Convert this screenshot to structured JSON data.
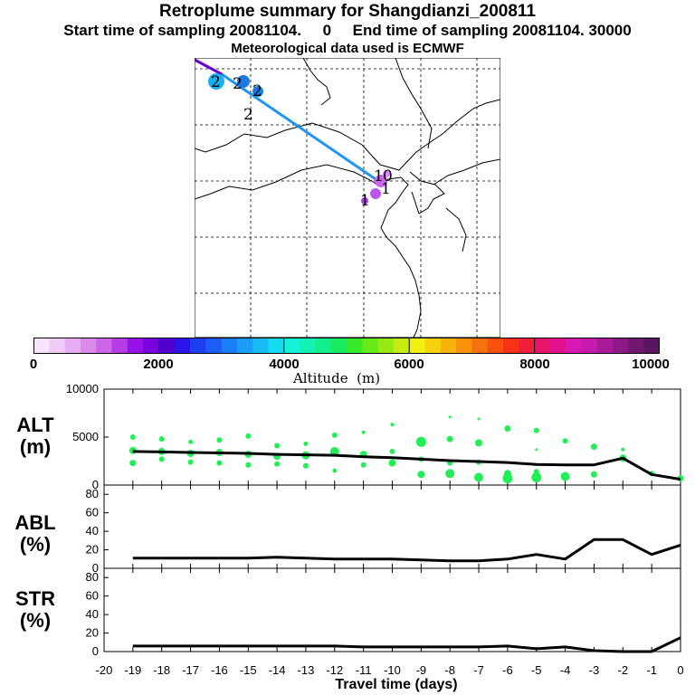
{
  "header": {
    "title": "Retroplume summary for Shangdianzi_200811",
    "subtitle": "Start time of sampling 20081104.     0     End time of sampling 20081104. 30000",
    "met_line": "Meteorological data used is ECMWF"
  },
  "map": {
    "plume_labels": [
      "2",
      "2",
      "2",
      "2",
      "1",
      "0",
      "1",
      "1"
    ]
  },
  "colorbar": {
    "title": "Altitude  (m)",
    "tick_labels": [
      "0",
      "2000",
      "4000",
      "6000",
      "8000",
      "10000"
    ],
    "range": [
      0,
      10000
    ]
  },
  "panels": {
    "alt": {
      "name": "ALT",
      "unit": "(m)"
    },
    "abl": {
      "name": "ABL",
      "unit": "(%)"
    },
    "str": {
      "name": "STR",
      "unit": "(%)"
    }
  },
  "chart_data": [
    {
      "type": "line",
      "title": "ALT",
      "xlabel": "Travel time (days)",
      "ylabel": "ALT (m)",
      "xlim": [
        -20,
        0
      ],
      "ylim": [
        0,
        10000
      ],
      "yticks": [
        "10000",
        "5000",
        "0"
      ],
      "xticks": [
        "-20",
        "-19",
        "-18",
        "-17",
        "-16",
        "-15",
        "-14",
        "-13",
        "-12",
        "-11",
        "-10",
        "-9",
        "-8",
        "-7",
        "-6",
        "-5",
        "-4",
        "-3",
        "-2",
        "-1",
        "0"
      ],
      "x": [
        -19,
        -18,
        -17,
        -16,
        -15,
        -14,
        -13,
        -12,
        -11,
        -10,
        -9,
        -8,
        -7,
        -6,
        -5,
        -4,
        -3,
        -2,
        -1,
        0
      ],
      "values": [
        3500,
        3450,
        3400,
        3350,
        3300,
        3200,
        3150,
        3100,
        2950,
        2850,
        2700,
        2550,
        2450,
        2350,
        2150,
        2100,
        2100,
        2800,
        1100,
        600
      ]
    },
    {
      "type": "line",
      "title": "ABL",
      "xlabel": "Travel time (days)",
      "ylabel": "ABL (%)",
      "xlim": [
        -20,
        0
      ],
      "ylim": [
        0,
        90
      ],
      "yticks": [
        "80",
        "60",
        "40",
        "20",
        "0"
      ],
      "x": [
        -19,
        -18,
        -17,
        -16,
        -15,
        -14,
        -13,
        -12,
        -11,
        -10,
        -9,
        -8,
        -7,
        -6,
        -5,
        -4,
        -3,
        -2,
        -1,
        0
      ],
      "values": [
        11,
        11,
        11,
        11,
        11,
        12,
        11,
        10,
        10,
        10,
        9,
        8,
        8,
        10,
        15,
        10,
        31,
        31,
        15,
        25
      ]
    },
    {
      "type": "line",
      "title": "STR",
      "xlabel": "Travel time (days)",
      "ylabel": "STR (%)",
      "xlim": [
        -20,
        0
      ],
      "ylim": [
        0,
        90
      ],
      "yticks": [
        "80",
        "60",
        "40",
        "20",
        "0"
      ],
      "x": [
        -19,
        -18,
        -17,
        -16,
        -15,
        -14,
        -13,
        -12,
        -11,
        -10,
        -9,
        -8,
        -7,
        -6,
        -5,
        -4,
        -3,
        -2,
        -1,
        0
      ],
      "values": [
        6,
        6,
        6,
        6,
        6,
        6,
        6,
        6,
        5,
        5,
        5,
        5,
        5,
        6,
        3,
        5,
        1,
        0,
        0,
        15
      ]
    }
  ]
}
